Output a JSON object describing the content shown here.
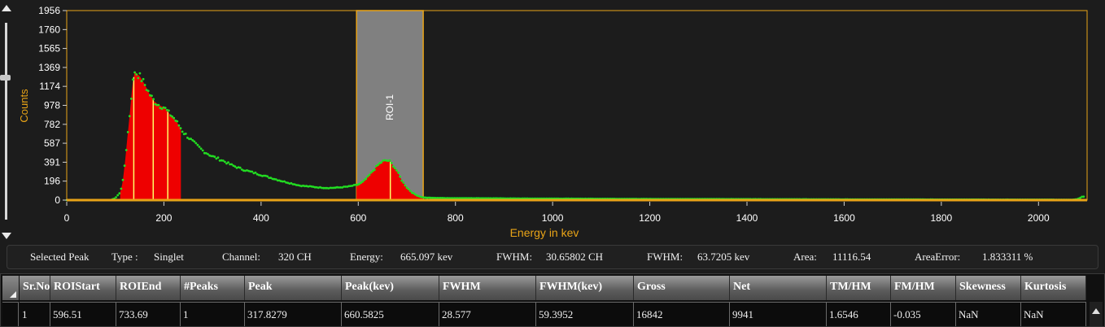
{
  "chart_data": {
    "type": "scatter",
    "xlabel": "Energy in kev",
    "ylabel": "Counts",
    "xlim": [
      0,
      2100
    ],
    "ylim": [
      0,
      1956
    ],
    "xticks": [
      0,
      200,
      400,
      600,
      800,
      1000,
      1200,
      1400,
      1600,
      1800,
      2000
    ],
    "yticks": [
      0,
      196,
      391,
      587,
      782,
      978,
      1174,
      1369,
      1565,
      1760,
      1956
    ],
    "roi": {
      "label": "ROI-1",
      "start": 596.51,
      "end": 733.69
    },
    "spectrum": {
      "x": [
        0,
        90,
        100,
        110,
        115,
        120,
        125,
        130,
        135,
        140,
        145,
        150,
        160,
        170,
        180,
        190,
        200,
        210,
        220,
        230,
        240,
        260,
        280,
        300,
        320,
        340,
        360,
        380,
        400,
        420,
        440,
        460,
        480,
        500,
        520,
        540,
        560,
        580,
        600,
        610,
        620,
        630,
        640,
        650,
        660,
        665,
        670,
        680,
        690,
        700,
        710,
        720,
        730,
        740,
        760,
        800,
        1000,
        1200,
        1400,
        1600,
        1800,
        2000,
        2070,
        2080,
        2090
      ],
      "y": [
        0,
        0,
        20,
        80,
        180,
        400,
        650,
        900,
        1180,
        1330,
        1300,
        1280,
        1200,
        1100,
        1020,
        980,
        960,
        900,
        850,
        780,
        700,
        600,
        510,
        450,
        410,
        360,
        320,
        290,
        260,
        230,
        200,
        175,
        150,
        140,
        130,
        125,
        130,
        140,
        160,
        190,
        240,
        300,
        360,
        400,
        410,
        400,
        370,
        300,
        200,
        130,
        80,
        50,
        30,
        25,
        22,
        20,
        15,
        12,
        10,
        8,
        6,
        5,
        4,
        10,
        35
      ]
    },
    "filled_regions": [
      {
        "start": 110,
        "end": 235
      },
      {
        "start": 596.51,
        "end": 733.69
      }
    ],
    "peak_markers": [
      138,
      178,
      208,
      666
    ]
  },
  "info": {
    "selected_peak": "Selected Peak",
    "type_label": "Type :",
    "type_value": "Singlet",
    "channel_label": "Channel:",
    "channel_value": "320 CH",
    "energy_label": "Energy:",
    "energy_value": "665.097 kev",
    "fwhm_label": "FWHM:",
    "fwhm_ch_value": "30.65802 CH",
    "fwhm_label2": "FWHM:",
    "fwhm_kev_value": "63.7205 kev",
    "area_label": "Area:",
    "area_value": "11116.54",
    "area_error_label": "AreaError:",
    "area_error_value": "1.833311 %"
  },
  "table": {
    "columns": [
      "Sr.No",
      "ROIStart",
      "ROIEnd",
      "#Peaks",
      "Peak",
      "Peak(kev)",
      "FWHM",
      "FWHM(kev)",
      "Gross",
      "Net",
      "TM/HM",
      "FM/HM",
      "Skewness",
      "Kurtosis"
    ],
    "rows": [
      [
        "1",
        "596.51",
        "733.69",
        "1",
        "317.8279",
        "660.5825",
        "28.577",
        "59.3952",
        "16842",
        "9941",
        "1.6546",
        "-0.035",
        "NaN",
        "NaN"
      ]
    ]
  },
  "colors": {
    "axis": "#e8a317",
    "background": "#1c1c1c",
    "data_points": "#22dd22",
    "fill": "#ee0000",
    "peak_marker": "#ffff66",
    "roi": "#808080"
  }
}
